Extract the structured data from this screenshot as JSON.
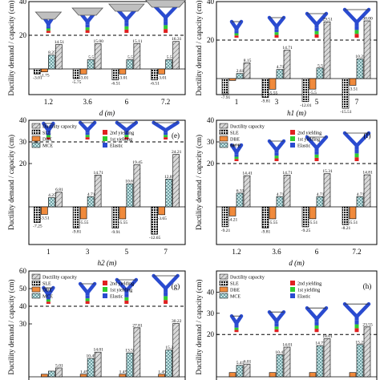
{
  "colors": {
    "capacity": "#d9d9d9",
    "sle": "#111111",
    "dbe": "#f08a3c",
    "mce": "#cfeff1",
    "yield2": "#e02020",
    "yield1": "#2fcc2f",
    "elastic": "#2a4bd0",
    "cap_plate": "#bfbfbf"
  },
  "legend": {
    "capacity": "Ductility capacity",
    "sle": "SLE",
    "dbe": "DBE",
    "mce": "MCE",
    "yield2": "2nd yielding",
    "yield1": "1st yielding",
    "elastic": "Elastic"
  },
  "chart_data": [
    {
      "id": "panel-top-left",
      "type": "bar",
      "tag": "",
      "xlabel": "d (m)",
      "ylabel": "Ductility demand / capacity (cm)",
      "ylim": [
        -10,
        40
      ],
      "yticks": [
        "40",
        "20"
      ],
      "threshold": 20,
      "categories": [
        "1.2",
        "3.6",
        "6",
        "7.2"
      ],
      "series": [
        {
          "key": "sle",
          "values": [
            -3.01,
            -5.75,
            -6.51,
            -6.51
          ],
          "labels": [
            "-3.01",
            "-5.75",
            "-6.51",
            "-6.51"
          ]
        },
        {
          "key": "dbe",
          "values": [
            -1.75,
            -3.01,
            -3.01,
            -3.01
          ],
          "labels": [
            "-1.75",
            "-3.01",
            "-3.01",
            "-3.01"
          ]
        },
        {
          "key": "mce",
          "values": [
            8.25,
            5.5,
            5.5,
            5.5
          ],
          "labels": [
            "8.25",
            "5.5",
            "5.5",
            "5.5"
          ]
        },
        {
          "key": "capacity",
          "values": [
            14.51,
            15.0,
            15.11,
            16.31
          ],
          "labels": [
            "14.51",
            "15.00",
            "15.11",
            "16.31"
          ]
        }
      ]
    },
    {
      "id": "panel-top-right",
      "type": "bar",
      "tag": "",
      "xlabel": "h1 (m)",
      "ylabel": "Ductility demand / capacity (cm)",
      "ylim": [
        -20,
        40
      ],
      "yticks": [
        "40",
        "20"
      ],
      "threshold": 20,
      "categories": [
        "1",
        "3",
        "5",
        "7"
      ],
      "series": [
        {
          "key": "sle",
          "values": [
            -7.91,
            -9.81,
            -12.01,
            -15.51
          ],
          "labels": [
            "-7.91",
            "-9.81",
            "-12.01",
            "-15.51"
          ]
        },
        {
          "key": "dbe",
          "values": [
            -1.0,
            -5.55,
            -5.5,
            -3.51
          ],
          "labels": [
            "",
            "-5.55",
            "-5.5",
            "-3.51"
          ]
        },
        {
          "key": "mce",
          "values": [
            2.61,
            4.71,
            5.5,
            10.25
          ],
          "labels": [
            "2.61",
            "4.71",
            "5.5",
            "10.25"
          ]
        },
        {
          "key": "capacity",
          "values": [
            8.15,
            14.71,
            29.51,
            30.0
          ],
          "labels": [
            "8.15",
            "14.71",
            "29.51",
            "30.00"
          ]
        }
      ]
    },
    {
      "id": "panel-e",
      "type": "bar",
      "tag": "(e)",
      "xlabel": "h2 (m)",
      "ylabel": "Ductility demand / capacity (cm)",
      "ylim": [
        -20,
        40
      ],
      "yticks": [
        "40",
        "30",
        "20"
      ],
      "threshold": 30,
      "categories": [
        "1",
        "3",
        "5",
        "7"
      ],
      "series": [
        {
          "key": "sle",
          "values": [
            -7.25,
            -9.81,
            -9.91,
            -12.65
          ],
          "labels": [
            "-7.25",
            "-9.81",
            "-9.91",
            "-12.65"
          ]
        },
        {
          "key": "dbe",
          "values": [
            -3.51,
            -5.55,
            -5.55,
            -3.65
          ],
          "labels": [
            "-3.51",
            "-5.55",
            "-5.55",
            "-3.65"
          ]
        },
        {
          "key": "mce",
          "values": [
            4.25,
            4.71,
            10.65,
            12.85
          ],
          "labels": [
            "4.25",
            "4.71",
            "10.65",
            "12.85"
          ]
        },
        {
          "key": "capacity",
          "values": [
            6.81,
            14.71,
            19.45,
            24.21
          ],
          "labels": [
            "6.81",
            "14.71",
            "19.45",
            "24.21"
          ]
        }
      ]
    },
    {
      "id": "panel-f",
      "type": "bar",
      "tag": "(f)",
      "xlabel": "d (m)",
      "ylabel": "Ductility demand / capacity (cm)",
      "ylim": [
        -20,
        40
      ],
      "yticks": [
        "40",
        "30",
        "20"
      ],
      "threshold": 20,
      "categories": [
        "1.2",
        "3.6",
        "6",
        "7.2"
      ],
      "series": [
        {
          "key": "sle",
          "values": [
            -9.21,
            -9.81,
            -9.25,
            -8.21
          ],
          "labels": [
            "-9.21",
            "-9.81",
            "-9.25",
            "-8.21"
          ]
        },
        {
          "key": "dbe",
          "values": [
            -4.21,
            -5.55,
            -5.51,
            -5.51
          ],
          "labels": [
            "-4.21",
            "-5.55",
            "-5.51",
            "-5.51"
          ]
        },
        {
          "key": "mce",
          "values": [
            6.31,
            4.71,
            4.71,
            4.71
          ],
          "labels": [
            "6.31",
            "4.71",
            "4.71",
            "4.71"
          ]
        },
        {
          "key": "capacity",
          "values": [
            14.41,
            14.71,
            15.31,
            14.81
          ],
          "labels": [
            "14.41",
            "14.71",
            "15.31",
            "14.81"
          ]
        }
      ]
    },
    {
      "id": "panel-g",
      "type": "bar",
      "tag": "(g)",
      "xlabel": "",
      "ylabel": "Ductility demand / capacity (cm)",
      "ylim": [
        -5,
        60
      ],
      "yticks": [
        "60",
        "50",
        "40",
        "30"
      ],
      "threshold": 40,
      "categories": [
        "",
        "",
        "",
        ""
      ],
      "series": [
        {
          "key": "sle",
          "values": [
            0,
            0,
            0,
            0
          ],
          "labels": [
            "",
            "",
            "",
            ""
          ]
        },
        {
          "key": "dbe",
          "values": [
            1.45,
            1.45,
            1.45,
            1.45
          ],
          "labels": [
            "",
            "1.45",
            "1.45",
            "1.45"
          ]
        },
        {
          "key": "mce",
          "values": [
            3.2,
            10.45,
            13.55,
            15.2
          ],
          "labels": [
            "",
            "10.45",
            "13.55",
            "15.2"
          ]
        },
        {
          "key": "capacity",
          "values": [
            5.01,
            14.01,
            27.81,
            30.22
          ],
          "labels": [
            "5.01",
            "14.01",
            "27.81",
            "30.22"
          ]
        }
      ]
    },
    {
      "id": "panel-h",
      "type": "bar",
      "tag": "(h)",
      "xlabel": "",
      "ylabel": "Ductility demand / capacity (cm)",
      "ylim": [
        -5,
        50
      ],
      "yticks": [
        "40",
        "30",
        "20"
      ],
      "threshold": 20,
      "categories": [
        "",
        "",
        "",
        ""
      ],
      "series": [
        {
          "key": "sle",
          "values": [
            0,
            0,
            0,
            0
          ],
          "labels": [
            "",
            "",
            "",
            ""
          ]
        },
        {
          "key": "dbe",
          "values": [
            2.0,
            2.0,
            2.0,
            2.0
          ],
          "labels": [
            "",
            "",
            "",
            ""
          ]
        },
        {
          "key": "mce",
          "values": [
            5.41,
            10.45,
            14.73,
            15.23
          ],
          "labels": [
            "5.41",
            "10.45",
            "14.73",
            "15.23"
          ]
        },
        {
          "key": "capacity",
          "values": [
            6.01,
            14.01,
            18.01,
            23.55
          ],
          "labels": [
            "6.01",
            "14.01",
            "18.01",
            "23.55"
          ]
        }
      ]
    }
  ]
}
